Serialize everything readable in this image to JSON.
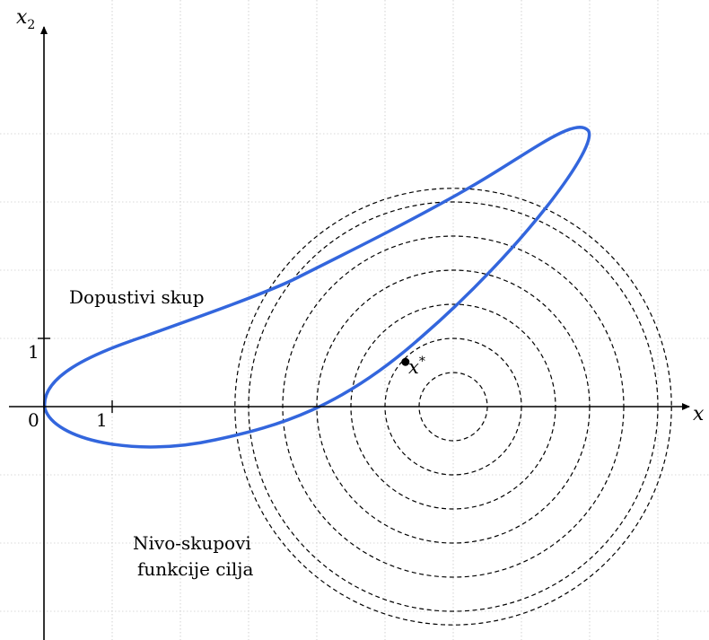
{
  "axes": {
    "x_label": "x",
    "y_label": "x",
    "y_label_sub": "2",
    "origin_label": "0",
    "x_tick_label": "1",
    "y_tick_label": "1"
  },
  "labels": {
    "feasible_set": "Dopustivi skup",
    "level_sets_line1": "Nivo-skupovi",
    "level_sets_line2": "funkcije cilja",
    "optimum": "x",
    "optimum_sup": "*"
  },
  "colors": {
    "feasible_curve": "#3366dd",
    "contours": "#000000",
    "grid": "#b3b3b3"
  },
  "level_sets": {
    "center": [
      6,
      0
    ],
    "radii": [
      0.5,
      1,
      1.5,
      2,
      2.5,
      3,
      3.2
    ]
  },
  "optimum_point": [
    5.3,
    0.8
  ]
}
